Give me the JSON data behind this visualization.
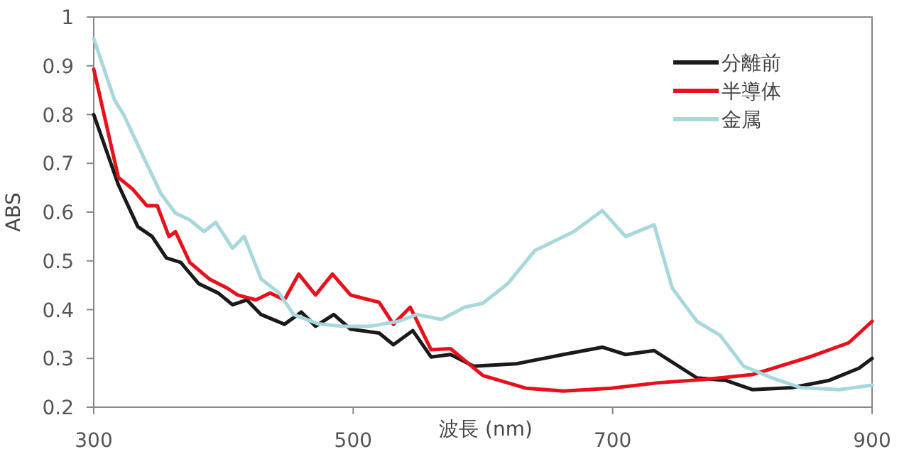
{
  "chart_data": {
    "type": "line",
    "xlabel": "波長 (nm)",
    "ylabel": "ABS",
    "xlim": [
      300,
      900
    ],
    "ylim": [
      0.2,
      1
    ],
    "xticks": [
      300,
      500,
      700,
      900
    ],
    "yticks": [
      0.2,
      0.3,
      0.4,
      0.5,
      0.6,
      0.7,
      0.8,
      0.9,
      1
    ],
    "legend": "top right",
    "series": [
      {
        "name": "分離前",
        "color": "#1a1a1a",
        "x": [
          300,
          319,
          334,
          345,
          356,
          367,
          381,
          396,
          407,
          418,
          429,
          447,
          460,
          471,
          485,
          498,
          520,
          531,
          546,
          560,
          575,
          593,
          626,
          662,
          692,
          710,
          732,
          765,
          787,
          808,
          838,
          867,
          890,
          900
        ],
        "values": [
          0.8,
          0.656,
          0.57,
          0.55,
          0.506,
          0.497,
          0.453,
          0.434,
          0.41,
          0.42,
          0.39,
          0.37,
          0.395,
          0.366,
          0.39,
          0.36,
          0.352,
          0.328,
          0.357,
          0.303,
          0.308,
          0.284,
          0.289,
          0.308,
          0.323,
          0.308,
          0.316,
          0.26,
          0.255,
          0.236,
          0.24,
          0.255,
          0.28,
          0.3
        ]
      },
      {
        "name": "半導体",
        "color": "#e8101a",
        "x": [
          300,
          319,
          330,
          341,
          349,
          358,
          363,
          374,
          389,
          403,
          411,
          425,
          436,
          447,
          458,
          471,
          484,
          498,
          520,
          531,
          544,
          560,
          575,
          600,
          633,
          662,
          699,
          735,
          772,
          808,
          852,
          882,
          900
        ],
        "values": [
          0.893,
          0.671,
          0.647,
          0.613,
          0.613,
          0.55,
          0.56,
          0.497,
          0.463,
          0.444,
          0.43,
          0.42,
          0.434,
          0.42,
          0.473,
          0.43,
          0.473,
          0.43,
          0.415,
          0.37,
          0.405,
          0.318,
          0.32,
          0.265,
          0.239,
          0.233,
          0.239,
          0.25,
          0.257,
          0.267,
          0.303,
          0.332,
          0.376
        ]
      },
      {
        "name": "金属",
        "color": "#a8d8dc",
        "x": [
          300,
          316,
          323,
          338,
          352,
          363,
          374,
          385,
          394,
          407,
          416,
          429,
          443,
          454,
          473,
          491,
          513,
          535,
          549,
          568,
          586,
          600,
          619,
          640,
          670,
          692,
          710,
          732,
          746,
          765,
          783,
          801,
          823,
          845,
          875,
          900
        ],
        "values": [
          0.956,
          0.83,
          0.8,
          0.715,
          0.637,
          0.598,
          0.584,
          0.56,
          0.579,
          0.526,
          0.55,
          0.463,
          0.434,
          0.39,
          0.371,
          0.366,
          0.366,
          0.376,
          0.39,
          0.38,
          0.405,
          0.413,
          0.453,
          0.521,
          0.56,
          0.603,
          0.55,
          0.574,
          0.444,
          0.376,
          0.347,
          0.284,
          0.26,
          0.24,
          0.236,
          0.245
        ]
      }
    ]
  }
}
